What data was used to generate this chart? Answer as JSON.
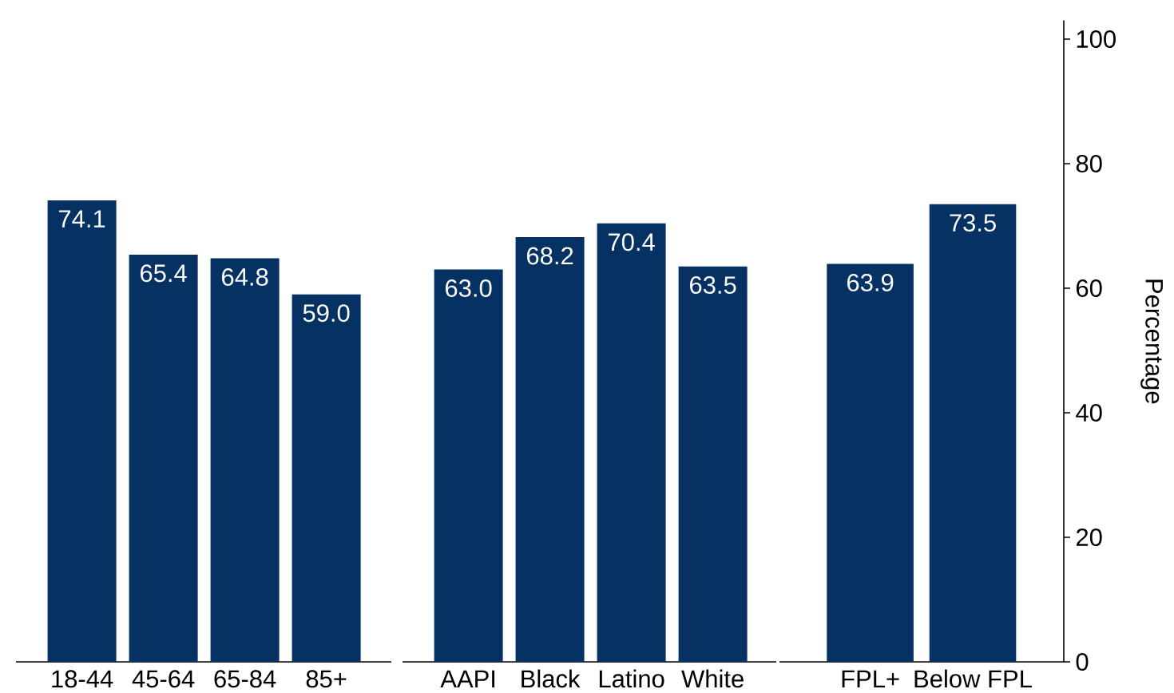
{
  "chart_data": [
    {
      "type": "bar",
      "categories": [
        "18-44",
        "45-64",
        "65-84",
        "85+"
      ],
      "values": [
        74.1,
        65.4,
        64.8,
        59.0
      ],
      "value_labels": [
        "74.1",
        "65.4",
        "64.8",
        "59.0"
      ],
      "color": "#053263",
      "tick_labels": "x"
    },
    {
      "type": "bar",
      "categories": [
        "AAPI",
        "Black",
        "Latino",
        "White"
      ],
      "values": [
        63.0,
        68.2,
        70.4,
        63.5
      ],
      "value_labels": [
        "63.0",
        "68.2",
        "70.4",
        "63.5"
      ],
      "color": "#053263",
      "tick_labels": "x"
    },
    {
      "type": "bar",
      "categories": [
        "FPL+",
        "Below FPL"
      ],
      "values": [
        63.9,
        73.5
      ],
      "value_labels": [
        "63.9",
        "73.5"
      ],
      "color": "#053263",
      "ylim": [
        0,
        103
      ],
      "yticks": [
        0,
        20,
        40,
        60,
        80,
        100
      ],
      "ylabel": "Percentage"
    }
  ]
}
